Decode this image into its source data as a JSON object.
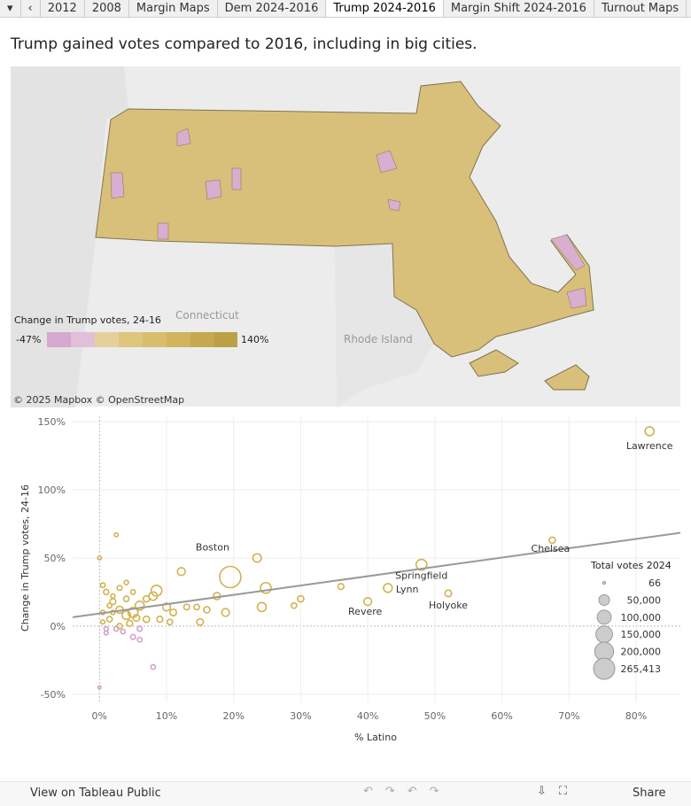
{
  "tabs": [
    "2012",
    "2008",
    "Margin Maps",
    "Dem 2024-2016",
    "Trump 2024-2016",
    "Margin Shift 2024-2016",
    "Turnout Maps"
  ],
  "active_tab": "Trump 2024-2016",
  "title": "Trump gained votes compared to 2016, including in big cities.",
  "map": {
    "legend_title": "Change in Trump votes, 24-16",
    "legend_min": "-47%",
    "legend_max": "140%",
    "labels": [
      "Connecticut",
      "Rhode Island"
    ],
    "attribution": "© 2025 Mapbox  © OpenStreetMap"
  },
  "chart_data": {
    "type": "scatter",
    "x_label": "% Latino",
    "y_label": "Change in Trump votes, 24-16",
    "xlim": [
      -4,
      86.6
    ],
    "ylim": [
      -56,
      154
    ],
    "xticks": [
      {
        "value": 0,
        "label": "0%"
      },
      {
        "value": 10,
        "label": "10%"
      },
      {
        "value": 20,
        "label": "20%"
      },
      {
        "value": 30,
        "label": "30%"
      },
      {
        "value": 40,
        "label": "40%"
      },
      {
        "value": 50,
        "label": "50%"
      },
      {
        "value": 60,
        "label": "60%"
      },
      {
        "value": 70,
        "label": "70%"
      },
      {
        "value": 80,
        "label": "80%"
      }
    ],
    "yticks": [
      {
        "value": -50,
        "label": "-50%"
      },
      {
        "value": 0,
        "label": "0%"
      },
      {
        "value": 50,
        "label": "50%"
      },
      {
        "value": 100,
        "label": "100%"
      },
      {
        "value": 150,
        "label": "150%"
      }
    ],
    "colors": {
      "positive": "#d2b250",
      "negative": "#d49fcc",
      "trend": "#999999"
    },
    "x": [
      82,
      67.5,
      48,
      52,
      43,
      40,
      19.5,
      23.5,
      24.8,
      24.2,
      12.2,
      36,
      30,
      29,
      17.5,
      16,
      15,
      18.8,
      14.5,
      11,
      10,
      8.5,
      8,
      7,
      6,
      5,
      4,
      3,
      2,
      1,
      0.5,
      1.5,
      2.5,
      3.5,
      5,
      6,
      1,
      0.5,
      2,
      3,
      4,
      5,
      6,
      8,
      0,
      2.5,
      0,
      1,
      4,
      9,
      10.5,
      13,
      7,
      3,
      1.5,
      0.5,
      2,
      4.5,
      5.5
    ],
    "y": [
      143,
      63,
      45,
      24,
      28,
      18,
      36,
      50,
      28,
      14,
      40,
      29,
      20,
      15,
      22,
      12,
      3,
      10,
      14,
      10,
      14,
      26,
      22,
      20,
      15,
      10,
      8,
      12,
      18,
      25,
      30,
      5,
      -2,
      -4,
      -8,
      -10,
      -2,
      3,
      10,
      28,
      20,
      25,
      -2,
      -30,
      -45,
      67,
      50,
      -5,
      32,
      5,
      3,
      14,
      5,
      0,
      15,
      10,
      22,
      2,
      6
    ],
    "sizes": [
      30000,
      10000,
      50000,
      12000,
      28000,
      20000,
      265413,
      25000,
      50000,
      30000,
      20000,
      8000,
      10000,
      6000,
      15000,
      10000,
      12000,
      20000,
      6000,
      12000,
      20000,
      50000,
      25000,
      10000,
      30000,
      40000,
      25000,
      15000,
      8000,
      5000,
      3000,
      6000,
      3000,
      2500,
      4000,
      3000,
      2000,
      1500,
      2000,
      4000,
      6000,
      3000,
      4000,
      3000,
      66,
      1000,
      800,
      1500,
      2000,
      8000,
      6000,
      7000,
      10000,
      5000,
      3000,
      2000,
      2000,
      8000,
      12000
    ],
    "point_labels": [
      "Lawrence",
      "Chelsea",
      "Springfield",
      "Holyoke",
      "Lynn",
      "Revere",
      "Boston",
      null,
      null,
      null,
      null,
      null,
      null,
      null,
      null,
      null,
      null,
      null,
      null,
      null,
      null,
      null,
      null,
      null,
      null,
      null,
      null,
      null,
      null,
      null,
      null,
      null,
      null,
      null,
      null,
      null,
      null,
      null,
      null,
      null,
      null,
      null,
      null,
      null,
      null,
      null,
      null,
      null,
      null,
      null,
      null,
      null,
      null,
      null,
      null,
      null,
      null,
      null,
      null
    ],
    "trendline": {
      "x": [
        -4,
        86.6
      ],
      "y": [
        6.5,
        68.5
      ]
    },
    "size_legend": {
      "title": "Total votes 2024",
      "values": [
        66,
        {
          "value": 50000,
          "label": "50,000"
        },
        {
          "value": 100000,
          "label": "100,000"
        },
        {
          "value": 150000,
          "label": "150,000"
        },
        {
          "value": 200000,
          "label": "200,000"
        },
        {
          "value": 265413,
          "label": "265,413"
        }
      ]
    }
  },
  "toolbar": {
    "view_link": "View on Tableau Public",
    "share": "Share"
  }
}
